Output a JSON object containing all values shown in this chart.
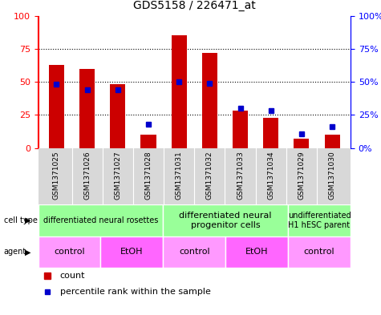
{
  "title": "GDS5158 / 226471_at",
  "samples": [
    "GSM1371025",
    "GSM1371026",
    "GSM1371027",
    "GSM1371028",
    "GSM1371031",
    "GSM1371032",
    "GSM1371033",
    "GSM1371034",
    "GSM1371029",
    "GSM1371030"
  ],
  "counts": [
    63,
    60,
    48,
    10,
    85,
    72,
    28,
    23,
    7,
    10
  ],
  "percentiles": [
    48,
    44,
    44,
    18,
    50,
    49,
    30,
    28,
    11,
    16
  ],
  "bar_color": "#cc0000",
  "dot_color": "#0000cc",
  "cell_type_groups": [
    {
      "label": "differentiated neural rosettes",
      "start": 0,
      "end": 3,
      "fontsize": 7
    },
    {
      "label": "differentiated neural\nprogenitor cells",
      "start": 4,
      "end": 7,
      "fontsize": 8
    },
    {
      "label": "undifferentiated\nH1 hESC parent",
      "start": 8,
      "end": 9,
      "fontsize": 7
    }
  ],
  "agent_groups": [
    {
      "label": "control",
      "start": 0,
      "end": 1
    },
    {
      "label": "EtOH",
      "start": 2,
      "end": 3
    },
    {
      "label": "control",
      "start": 4,
      "end": 5
    },
    {
      "label": "EtOH",
      "start": 6,
      "end": 7
    },
    {
      "label": "control",
      "start": 8,
      "end": 9
    }
  ],
  "cell_type_bg": "#99ff99",
  "agent_control_bg": "#ff99ff",
  "agent_etoh_bg": "#ff66ff",
  "ylim_left": [
    0,
    100
  ],
  "ylim_right": [
    0,
    100
  ],
  "yticks": [
    0,
    25,
    50,
    75,
    100
  ],
  "grid_color": "#000000",
  "background_color": "#ffffff",
  "bar_width": 0.5
}
